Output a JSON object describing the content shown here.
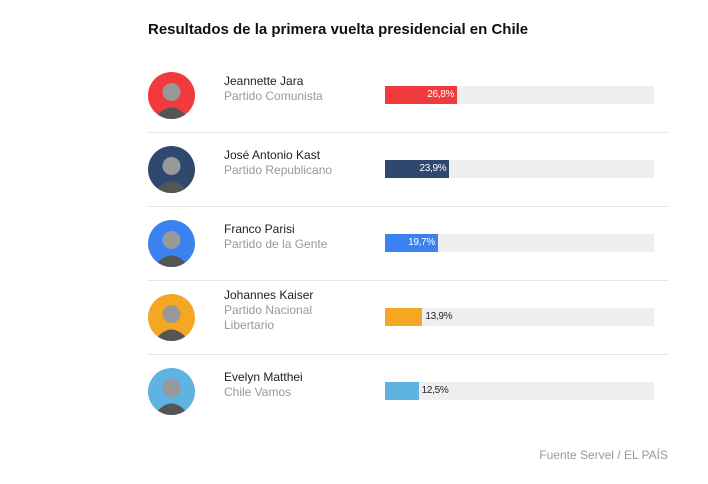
{
  "chart_data": {
    "type": "bar",
    "title": "Resultados de la primera vuelta presidencial en Chile",
    "xlim": [
      0,
      100
    ],
    "categories": [
      "Jeannette Jara",
      "José Antonio Kast",
      "Franco Parisi",
      "Johannes Kaiser",
      "Evelyn Matthei"
    ],
    "parties": [
      "Partido Comunista",
      "Partido Republicano",
      "Partido de la Gente",
      "Partido Nacional Libertario",
      "Chile Vamos"
    ],
    "values": [
      26.8,
      23.9,
      19.7,
      13.9,
      12.5
    ],
    "labels": [
      "26,8%",
      "23,9%",
      "19,7%",
      "13,9%",
      "12,5%"
    ],
    "colors": [
      "#f03a3e",
      "#2f4870",
      "#3b82f0",
      "#f5a623",
      "#5fb3e0"
    ],
    "source": "Fuente Servel / EL PAÍS"
  }
}
